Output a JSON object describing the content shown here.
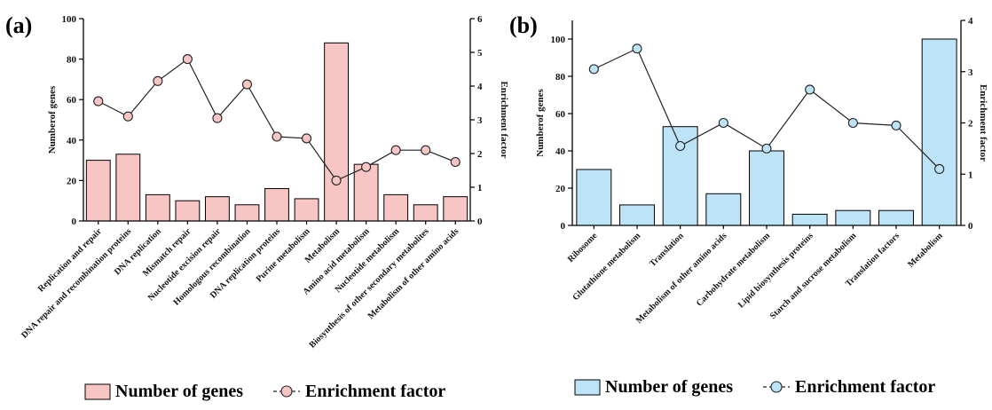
{
  "chart_data": [
    {
      "type": "bar",
      "panel_label": "(a)",
      "categories": [
        "Replication and repair",
        "DNA repair and recombination proteins",
        "DNA replication",
        "Mismatch repair",
        "Nucleotide excision repair",
        "Homologous recombination",
        "DNA replication proteins",
        "Purine metabolism",
        "Metabolism",
        "Amino acid metabolism",
        "Nucleotide metabolism",
        "Biosynthesis of other secondary metabolites",
        "Metabolism of other amino acids"
      ],
      "series": [
        {
          "name": "Number of genes",
          "type": "bar",
          "axis": "left",
          "values": [
            30,
            33,
            13,
            10,
            12,
            8,
            16,
            11,
            88,
            28,
            13,
            8,
            12
          ]
        },
        {
          "name": "Enrichment factor",
          "type": "line",
          "axis": "right",
          "values": [
            3.55,
            3.1,
            4.15,
            4.8,
            3.05,
            4.05,
            2.5,
            2.45,
            1.2,
            1.6,
            2.1,
            2.1,
            1.75
          ]
        }
      ],
      "ylabel": "Numberof genes",
      "ylabel_right": "Enrichment factor",
      "ylim": [
        0,
        100
      ],
      "yticks": [
        0,
        20,
        40,
        60,
        80,
        100
      ],
      "ylim_right": [
        0,
        6
      ],
      "yticks_right": [
        0,
        1,
        2,
        3,
        4,
        5,
        6
      ],
      "legend": "bottom",
      "bar_color": "#F7C6C4",
      "marker_color": "#F7C6C4"
    },
    {
      "type": "bar",
      "panel_label": "(b)",
      "categories": [
        "Ribosome",
        "Glutathione metabolism",
        "Translation",
        "Metabolism of other amino acids",
        "Carbohydrate metabolism",
        "Lipid biosynthesis proteins",
        "Starch and sucrose metabolism",
        "Translation factors",
        "Metabolism"
      ],
      "series": [
        {
          "name": "Number of genes",
          "type": "bar",
          "axis": "left",
          "values": [
            30,
            11,
            53,
            17,
            40,
            6,
            8,
            8,
            100
          ]
        },
        {
          "name": "Enrichment factor",
          "type": "line",
          "axis": "right",
          "values": [
            3.05,
            3.45,
            1.55,
            2.0,
            1.5,
            2.65,
            2.0,
            1.95,
            1.1
          ]
        }
      ],
      "ylabel": "Numberof genes",
      "ylabel_right": "Enrichment factor",
      "ylim": [
        0,
        110
      ],
      "yticks": [
        0,
        20,
        40,
        60,
        80,
        100
      ],
      "ylim_right": [
        0,
        4
      ],
      "yticks_right": [
        0,
        1,
        2,
        3,
        4
      ],
      "legend": "bottom",
      "bar_color": "#BDE3F6",
      "marker_color": "#BDE3F6"
    }
  ]
}
